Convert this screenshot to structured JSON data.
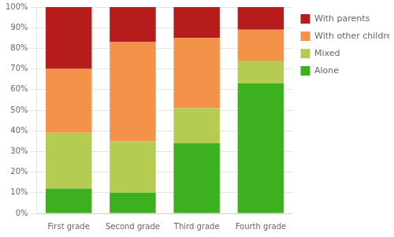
{
  "chart_data": {
    "type": "bar",
    "stacked": true,
    "categories": [
      "First grade",
      "Second grade",
      "Third grade",
      "Fourth grade"
    ],
    "series": [
      {
        "name": "Alone",
        "color": "#3db01f",
        "values": [
          12,
          10,
          34,
          63
        ]
      },
      {
        "name": "Mixed",
        "color": "#b5cc52",
        "values": [
          27,
          25,
          17,
          11
        ]
      },
      {
        "name": "With other children",
        "color": "#f5924a",
        "values": [
          31,
          48,
          34,
          15
        ]
      },
      {
        "name": "With parents",
        "color": "#b71c1c",
        "values": [
          30,
          17,
          15,
          11
        ]
      }
    ],
    "ylim": [
      0,
      100
    ],
    "yticks": [
      {
        "value": 0,
        "label": "0%"
      },
      {
        "value": 10,
        "label": "10%"
      },
      {
        "value": 20,
        "label": "20%"
      },
      {
        "value": 30,
        "label": "30%"
      },
      {
        "value": 40,
        "label": "40%"
      },
      {
        "value": 50,
        "label": "50%"
      },
      {
        "value": 60,
        "label": "60%"
      },
      {
        "value": 70,
        "label": "70%"
      },
      {
        "value": 80,
        "label": "80%"
      },
      {
        "value": 90,
        "label": "90%"
      },
      {
        "value": 100,
        "label": "100%"
      }
    ],
    "grid": true,
    "legend": "right"
  }
}
